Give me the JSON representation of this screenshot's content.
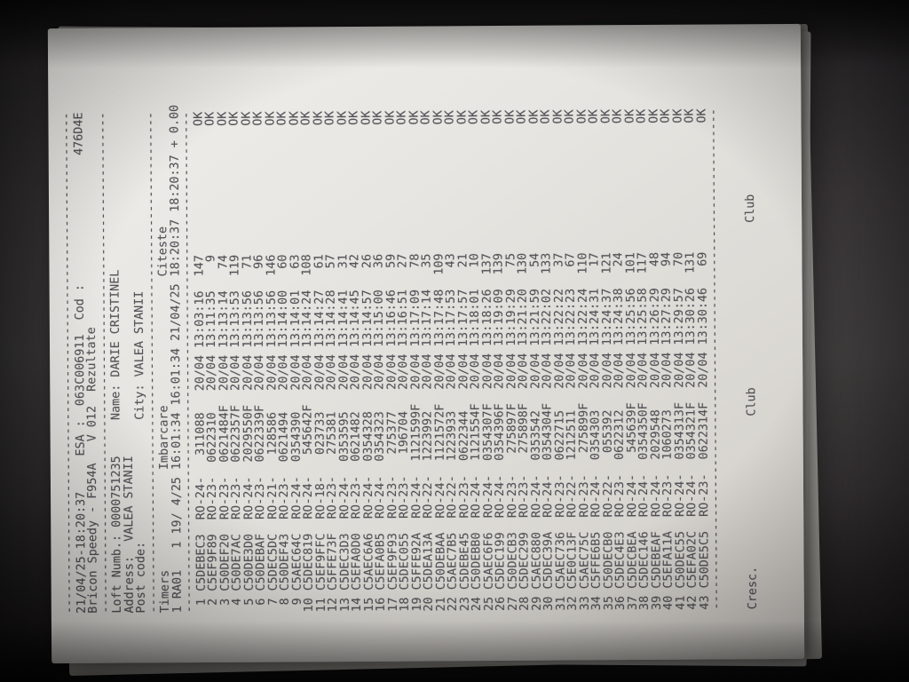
{
  "separator": "----------------------------------------------------------------------",
  "report": {
    "printed_at": "21/04/25-18:20:37",
    "esa_label": "ESA :",
    "esa": "063C006911",
    "cod_label": "Cod :",
    "cod": "476D4E",
    "device": "Bricon Speedy - F954A",
    "version": "V 012",
    "doc_title": "Rezultate"
  },
  "loft": {
    "number_label": "Loft Numb.:",
    "number": "0000751235",
    "name_label": "Name:",
    "name": "DARIE CRISTINEL",
    "address_label": "Address:",
    "address": "VALEA STANII",
    "postcode_label": "Post code:",
    "city_label": "City:",
    "city": "VALEA STANII"
  },
  "timers": {
    "section_label": "Timers",
    "basketing_label": "Imbarcare",
    "reading_label": "Citeste",
    "timer": "1 RA01",
    "count": "1",
    "basket_date": "19/ 4/25",
    "basket_time": "16:01:34",
    "basket_time2": "16:01:34",
    "read_date": "21/04/25",
    "read_time": "18:20:37",
    "read_time2": "18:20:37",
    "diff": "+ 0.00"
  },
  "results": {
    "rows": [
      {
        "no": "1",
        "chip": "C5DEBEC3",
        "ring_prefix": "RO-24-",
        "ring_number": "311088",
        "ring_suffix": "",
        "date": "20/04",
        "time": "13:03:16",
        "points": "147",
        "status": "OK"
      },
      {
        "no": "2",
        "chip": "C5EF9F89",
        "ring_prefix": "RO-23-",
        "ring_number": "0622310",
        "ring_suffix": "",
        "date": "20/04",
        "time": "13:11:35",
        "points": "9",
        "status": "OK"
      },
      {
        "no": "3",
        "chip": "C50DEF20",
        "ring_prefix": "RO-23-",
        "ring_number": "0621484",
        "ring_suffix": "F",
        "date": "20/04",
        "time": "13:13:14",
        "points": "74",
        "status": "OK"
      },
      {
        "no": "4",
        "chip": "C50DE7AC",
        "ring_prefix": "RO-23-",
        "ring_number": "0622357",
        "ring_suffix": "F",
        "date": "20/04",
        "time": "13:13:53",
        "points": "119",
        "status": "OK"
      },
      {
        "no": "5",
        "chip": "C50DE3D0",
        "ring_prefix": "RO-24-",
        "ring_number": "2029550",
        "ring_suffix": "F",
        "date": "20/04",
        "time": "13:13:56",
        "points": "71",
        "status": "OK"
      },
      {
        "no": "6",
        "chip": "C50DEBAF",
        "ring_prefix": "RO-23-",
        "ring_number": "0622339",
        "ring_suffix": "F",
        "date": "20/04",
        "time": "13:13:56",
        "points": "96",
        "status": "OK"
      },
      {
        "no": "7",
        "chip": "C5DEC5DC",
        "ring_prefix": "RO-21-",
        "ring_number": "128586",
        "ring_suffix": "",
        "date": "20/04",
        "time": "13:13:56",
        "points": "146",
        "status": "OK"
      },
      {
        "no": "8",
        "chip": "C50DEF43",
        "ring_prefix": "RO-23-",
        "ring_number": "0621494",
        "ring_suffix": "",
        "date": "20/04",
        "time": "13:14:00",
        "points": "60",
        "status": "OK"
      },
      {
        "no": "9",
        "chip": "C5AEC64C",
        "ring_prefix": "RO-24-",
        "ring_number": "0354390",
        "ring_suffix": "",
        "date": "20/04",
        "time": "13:14:01",
        "points": "63",
        "status": "OK"
      },
      {
        "no": "10",
        "chip": "C5DEC819",
        "ring_prefix": "RO-24-",
        "ring_number": "545642",
        "ring_suffix": "F",
        "date": "20/04",
        "time": "13:14:24",
        "points": "108",
        "status": "OK"
      },
      {
        "no": "11",
        "chip": "C5EF9FFC",
        "ring_prefix": "RO-18-",
        "ring_number": "023733",
        "ring_suffix": "",
        "date": "20/04",
        "time": "13:14:27",
        "points": "61",
        "status": "OK"
      },
      {
        "no": "12",
        "chip": "C5FFE73F",
        "ring_prefix": "RO-23-",
        "ring_number": "275381",
        "ring_suffix": "",
        "date": "20/04",
        "time": "13:14:28",
        "points": "57",
        "status": "OK"
      },
      {
        "no": "13",
        "chip": "C5DEC3D3",
        "ring_prefix": "RO-24-",
        "ring_number": "0353595",
        "ring_suffix": "",
        "date": "20/04",
        "time": "13:14:41",
        "points": "31",
        "status": "OK"
      },
      {
        "no": "14",
        "chip": "C5EFA0D0",
        "ring_prefix": "RO-23-",
        "ring_number": "0621482",
        "ring_suffix": "",
        "date": "20/04",
        "time": "13:14:45",
        "points": "42",
        "status": "OK"
      },
      {
        "no": "15",
        "chip": "C5AEC6A6",
        "ring_prefix": "RO-24-",
        "ring_number": "0354328",
        "ring_suffix": "",
        "date": "20/04",
        "time": "13:14:57",
        "points": "26",
        "status": "OK"
      },
      {
        "no": "16",
        "chip": "C5EFA0B5",
        "ring_prefix": "RO-24-",
        "ring_number": "0354323",
        "ring_suffix": "",
        "date": "20/04",
        "time": "13:15:00",
        "points": "36",
        "status": "OK"
      },
      {
        "no": "17",
        "chip": "C5EF9F93",
        "ring_prefix": "RO-23-",
        "ring_number": "275377",
        "ring_suffix": "",
        "date": "20/04",
        "time": "13:16:46",
        "points": "59",
        "status": "OK"
      },
      {
        "no": "18",
        "chip": "C5DEC055",
        "ring_prefix": "RO-23-",
        "ring_number": "196704",
        "ring_suffix": "",
        "date": "20/04",
        "time": "13:16:51",
        "points": "27",
        "status": "OK"
      },
      {
        "no": "19",
        "chip": "C5FFE92A",
        "ring_prefix": "RO-24-",
        "ring_number": "1121599",
        "ring_suffix": "F",
        "date": "20/04",
        "time": "13:17:09",
        "points": "78",
        "status": "OK"
      },
      {
        "no": "20",
        "chip": "C5DEA13A",
        "ring_prefix": "RO-22-",
        "ring_number": "1223992",
        "ring_suffix": "",
        "date": "20/04",
        "time": "13:17:14",
        "points": "35",
        "status": "OK"
      },
      {
        "no": "21",
        "chip": "C50DEBAA",
        "ring_prefix": "RO-24-",
        "ring_number": "1121572",
        "ring_suffix": "F",
        "date": "20/04",
        "time": "13:17:48",
        "points": "109",
        "status": "OK"
      },
      {
        "no": "22",
        "chip": "C5AEC7B5",
        "ring_prefix": "RO-22-",
        "ring_number": "1223933",
        "ring_suffix": "",
        "date": "20/04",
        "time": "13:17:53",
        "points": "43",
        "status": "OK"
      },
      {
        "no": "23",
        "chip": "C5DEBE45",
        "ring_prefix": "RO-23-",
        "ring_number": "0622344",
        "ring_suffix": "",
        "date": "20/04",
        "time": "13:17:57",
        "points": "21",
        "status": "OK"
      },
      {
        "no": "24",
        "chip": "C50DEBB0",
        "ring_prefix": "RO-24-",
        "ring_number": "1121554",
        "ring_suffix": "F",
        "date": "20/04",
        "time": "13:18:01",
        "points": "10",
        "status": "OK"
      },
      {
        "no": "25",
        "chip": "C5AEC6F6",
        "ring_prefix": "RO-24-",
        "ring_number": "0354307",
        "ring_suffix": "F",
        "date": "20/04",
        "time": "13:18:26",
        "points": "137",
        "status": "OK"
      },
      {
        "no": "26",
        "chip": "C5DEC199",
        "ring_prefix": "RO-24-",
        "ring_number": "0354396",
        "ring_suffix": "F",
        "date": "20/04",
        "time": "13:19:09",
        "points": "139",
        "status": "OK"
      },
      {
        "no": "27",
        "chip": "C50DECB3",
        "ring_prefix": "RO-23-",
        "ring_number": "275897",
        "ring_suffix": "F",
        "date": "20/04",
        "time": "13:19:29",
        "points": "75",
        "status": "OK"
      },
      {
        "no": "28",
        "chip": "C5DEC299",
        "ring_prefix": "RO-23-",
        "ring_number": "275898",
        "ring_suffix": "F",
        "date": "20/04",
        "time": "13:21:20",
        "points": "130",
        "status": "OK"
      },
      {
        "no": "29",
        "chip": "C5AEC880",
        "ring_prefix": "RO-24-",
        "ring_number": "0353542",
        "ring_suffix": "",
        "date": "20/04",
        "time": "13:21:59",
        "points": "54",
        "status": "OK"
      },
      {
        "no": "30",
        "chip": "C5DEC39A",
        "ring_prefix": "RO-24-",
        "ring_number": "0354304",
        "ring_suffix": "F",
        "date": "20/04",
        "time": "13:22:02",
        "points": "133",
        "status": "OK"
      },
      {
        "no": "31",
        "chip": "C5AEC736",
        "ring_prefix": "RO-23-",
        "ring_number": "0622715",
        "ring_suffix": "",
        "date": "20/04",
        "time": "13:22:22",
        "points": "37",
        "status": "OK"
      },
      {
        "no": "32",
        "chip": "C5E0C13F",
        "ring_prefix": "RO-22-",
        "ring_number": "1212511",
        "ring_suffix": "",
        "date": "20/04",
        "time": "13:22:23",
        "points": "67",
        "status": "OK"
      },
      {
        "no": "33",
        "chip": "C5AEC75C",
        "ring_prefix": "RO-23-",
        "ring_number": "275899",
        "ring_suffix": "F",
        "date": "20/04",
        "time": "13:22:24",
        "points": "110",
        "status": "OK"
      },
      {
        "no": "34",
        "chip": "C5FFE6B5",
        "ring_prefix": "RO-24-",
        "ring_number": "0354303",
        "ring_suffix": "",
        "date": "20/04",
        "time": "13:24:31",
        "points": "17",
        "status": "OK"
      },
      {
        "no": "35",
        "chip": "C50DECB0",
        "ring_prefix": "RO-22-",
        "ring_number": "055392",
        "ring_suffix": "",
        "date": "20/04",
        "time": "13:24:37",
        "points": "121",
        "status": "OK"
      },
      {
        "no": "36",
        "chip": "C5DEC4E3",
        "ring_prefix": "RO-23-",
        "ring_number": "0622312",
        "ring_suffix": "",
        "date": "20/04",
        "time": "13:24:38",
        "points": "24",
        "status": "OK"
      },
      {
        "no": "37",
        "chip": "C5DECBEA",
        "ring_prefix": "RO-24-",
        "ring_number": "545639",
        "ring_suffix": "F",
        "date": "20/04",
        "time": "13:25:56",
        "points": "101",
        "status": "OK"
      },
      {
        "no": "38",
        "chip": "C5DEC146",
        "ring_prefix": "RO-24-",
        "ring_number": "0354350",
        "ring_suffix": "F",
        "date": "20/04",
        "time": "13:25:58",
        "points": "117",
        "status": "OK"
      },
      {
        "no": "39",
        "chip": "C5DEBEAF",
        "ring_prefix": "RO-24-",
        "ring_number": "2029548",
        "ring_suffix": "",
        "date": "20/04",
        "time": "13:26:29",
        "points": "48",
        "status": "OK"
      },
      {
        "no": "40",
        "chip": "C5EFA11A",
        "ring_prefix": "RO-23-",
        "ring_number": "1060273",
        "ring_suffix": "",
        "date": "20/04",
        "time": "13:27:29",
        "points": "94",
        "status": "OK"
      },
      {
        "no": "41",
        "chip": "C50DEC55",
        "ring_prefix": "RO-24-",
        "ring_number": "0354313",
        "ring_suffix": "F",
        "date": "20/04",
        "time": "13:29:57",
        "points": "70",
        "status": "OK"
      },
      {
        "no": "42",
        "chip": "C5EFA02C",
        "ring_prefix": "RO-24-",
        "ring_number": "0354321",
        "ring_suffix": "F",
        "date": "20/04",
        "time": "13:30:26",
        "points": "131",
        "status": "OK"
      },
      {
        "no": "43",
        "chip": "C50DE5C5",
        "ring_prefix": "RO-23-",
        "ring_number": "0622314",
        "ring_suffix": "F",
        "date": "20/04",
        "time": "13:30:46",
        "points": "69",
        "status": "OK"
      }
    ]
  },
  "footer": {
    "breeder_label": "Cresc.",
    "club_label": "Club",
    "club2_label": "Club"
  }
}
